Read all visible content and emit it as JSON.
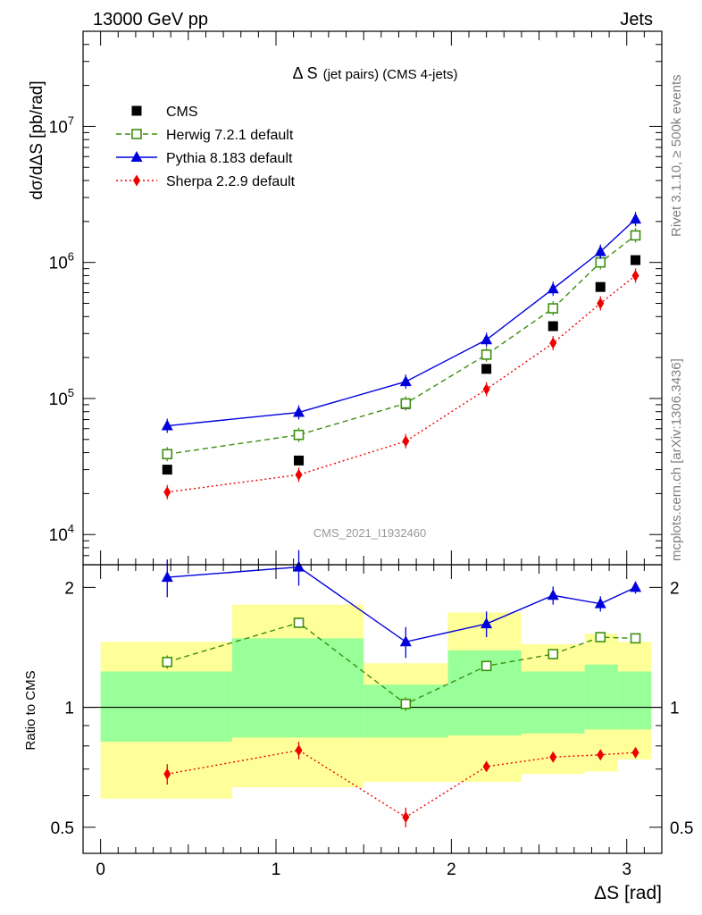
{
  "header": {
    "left": "13000 GeV pp",
    "right": "Jets"
  },
  "side_text": {
    "top": "Rivet 3.1.10, ≥ 500k events",
    "bottom": "mcplots.cern.ch [arXiv:1306.3436]"
  },
  "colors": {
    "cms": "#000000",
    "herwig": "#3d8f0f",
    "pythia": "#0000dd",
    "sherpa": "#ee0000",
    "band_inner": "#99ff99",
    "band_outer": "#ffff99"
  },
  "chart_data": [
    {
      "type": "scatter",
      "title": "Δ S",
      "subtitle": "(jet pairs) (CMS 4-jets)",
      "analysis_label": "CMS_2021_I1932460",
      "xlabel": "ΔS [rad]",
      "ylabel": "dσ/dΔS [pb/rad]",
      "yscale": "log",
      "xlim": [
        -0.1,
        3.2
      ],
      "ylim": [
        6000,
        50000000
      ],
      "y_ticks": [
        {
          "base": "10",
          "exp": "4",
          "value": 10000
        },
        {
          "base": "10",
          "exp": "5",
          "value": 100000
        },
        {
          "base": "10",
          "exp": "6",
          "value": 1000000
        },
        {
          "base": "10",
          "exp": "7",
          "value": 10000000
        }
      ],
      "legend_position": "top-left",
      "x": [
        0.38,
        1.13,
        1.74,
        2.2,
        2.58,
        2.85,
        3.05
      ],
      "series": [
        {
          "name": "CMS",
          "key": "cms",
          "marker": "square",
          "values": [
            30000,
            35000,
            91000,
            165000,
            340000,
            660000,
            1040000
          ]
        },
        {
          "name": "Herwig 7.2.1 default",
          "key": "herwig",
          "marker": "open-square",
          "line": "dashed",
          "values": [
            39000,
            54000,
            92000,
            210000,
            460000,
            1000000,
            1580000
          ]
        },
        {
          "name": "Pythia 8.183 default",
          "key": "pythia",
          "marker": "triangle",
          "line": "solid",
          "values": [
            63000,
            79000,
            133000,
            270000,
            640000,
            1200000,
            2080000
          ]
        },
        {
          "name": "Sherpa 2.2.9 default",
          "key": "sherpa",
          "marker": "diamond",
          "line": "dotted",
          "values": [
            20500,
            27500,
            48500,
            117000,
            255000,
            500000,
            800000
          ]
        }
      ]
    },
    {
      "type": "scatter",
      "ylabel": "Ratio to CMS",
      "xlabel": "ΔS [rad]",
      "xlim": [
        -0.1,
        3.2
      ],
      "ylim": [
        0.43,
        2.28
      ],
      "x_ticks": [
        "0",
        "1",
        "2",
        "3"
      ],
      "y_ticks": [
        "0.5",
        "1",
        "2"
      ],
      "x": [
        0.38,
        1.13,
        1.74,
        2.2,
        2.58,
        2.85,
        3.05
      ],
      "bins": [
        {
          "lo": 0.0,
          "hi": 0.75,
          "inner": [
            0.82,
            1.23
          ],
          "outer": [
            0.59,
            1.46
          ]
        },
        {
          "lo": 0.75,
          "hi": 1.5,
          "inner": [
            0.84,
            1.49
          ],
          "outer": [
            0.63,
            1.81
          ]
        },
        {
          "lo": 1.5,
          "hi": 1.98,
          "inner": [
            0.84,
            1.14
          ],
          "outer": [
            0.65,
            1.29
          ]
        },
        {
          "lo": 1.98,
          "hi": 2.4,
          "inner": [
            0.85,
            1.39
          ],
          "outer": [
            0.65,
            1.73
          ]
        },
        {
          "lo": 2.4,
          "hi": 2.76,
          "inner": [
            0.86,
            1.23
          ],
          "outer": [
            0.68,
            1.44
          ]
        },
        {
          "lo": 2.76,
          "hi": 2.95,
          "inner": [
            0.88,
            1.28
          ],
          "outer": [
            0.69,
            1.53
          ]
        },
        {
          "lo": 2.95,
          "hi": 3.14,
          "inner": [
            0.88,
            1.23
          ],
          "outer": [
            0.74,
            1.46
          ]
        }
      ],
      "series": [
        {
          "name": "Herwig 7.2.1 default",
          "key": "herwig",
          "marker": "open-square",
          "line": "dashed",
          "values": [
            1.3,
            1.63,
            1.02,
            1.27,
            1.36,
            1.5,
            1.49
          ],
          "err": [
            0.05,
            0.05,
            0.04,
            0.03,
            0.03,
            0.03,
            0.03
          ]
        },
        {
          "name": "Pythia 8.183 default",
          "key": "pythia",
          "marker": "triangle",
          "line": "solid",
          "values": [
            2.12,
            2.25,
            1.46,
            1.62,
            1.91,
            1.82,
            2.0
          ],
          "err": [
            0.23,
            0.23,
            0.13,
            0.12,
            0.1,
            0.08,
            0.07
          ]
        },
        {
          "name": "Sherpa 2.2.9 default",
          "key": "sherpa",
          "marker": "diamond",
          "line": "dotted",
          "values": [
            0.68,
            0.78,
            0.53,
            0.71,
            0.75,
            0.76,
            0.77
          ],
          "err": [
            0.04,
            0.04,
            0.03,
            0.02,
            0.02,
            0.02,
            0.02
          ]
        }
      ]
    }
  ]
}
